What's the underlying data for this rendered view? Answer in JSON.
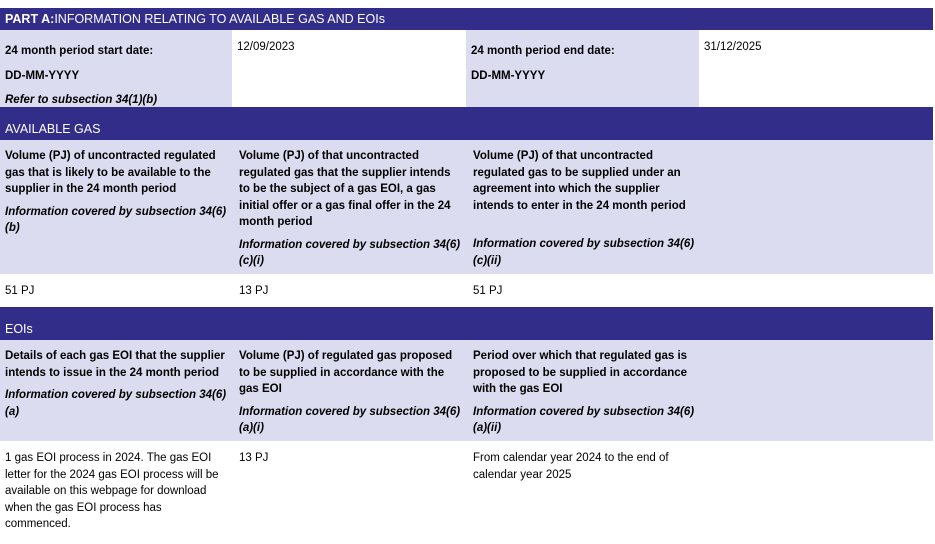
{
  "part_a": {
    "prefix": "PART A:",
    "title": " INFORMATION RELATING TO AVAILABLE GAS AND EOIs"
  },
  "period": {
    "start_label": "24 month period start date:",
    "start_format": "DD-MM-YYYY",
    "start_ref": "Refer to subsection 34(1)(b)",
    "start_value": "12/09/2023",
    "end_label": "24 month period end date:",
    "end_format": "DD-MM-YYYY",
    "end_value": "31/12/2025"
  },
  "available_gas": {
    "title": "AVAILABLE GAS",
    "columns": [
      {
        "heading": "Volume (PJ) of uncontracted regulated gas that is likely to be available to the supplier in the 24 month period",
        "ref": "Information covered by subsection 34(6)(b)",
        "value": "51 PJ"
      },
      {
        "heading": "Volume (PJ) of that uncontracted regulated gas that the supplier intends to be the subject of a gas EOI, a gas initial offer or a gas final offer in the 24 month period",
        "ref": "Information covered by subsection 34(6)(c)(i)",
        "value": "13 PJ"
      },
      {
        "heading": "Volume (PJ) of that uncontracted regulated gas to be supplied under an agreement into which the supplier intends to enter in the 24 month period",
        "ref": "Information covered by subsection 34(6)(c)(ii)",
        "value": "51 PJ"
      }
    ]
  },
  "eois": {
    "title": "EOIs",
    "columns": [
      {
        "heading": "Details of each gas EOI that the supplier intends to issue in the 24 month period",
        "ref": "Information covered by subsection 34(6)(a)",
        "value": "1 gas EOI process in 2024.  The gas EOI letter for the 2024 gas EOI process will be available on this webpage for download when the gas EOI process has commenced."
      },
      {
        "heading": "Volume (PJ) of regulated gas proposed to be supplied in accordance with the gas EOI",
        "ref": "Information covered by subsection 34(6)(a)(i)",
        "value": "13 PJ"
      },
      {
        "heading": "Period over which that regulated gas is proposed to be supplied in accordance with the gas EOI",
        "ref": "Information covered by subsection 34(6)(a)(ii)",
        "value": "From calendar year 2024 to the end of calendar year 2025"
      }
    ]
  }
}
